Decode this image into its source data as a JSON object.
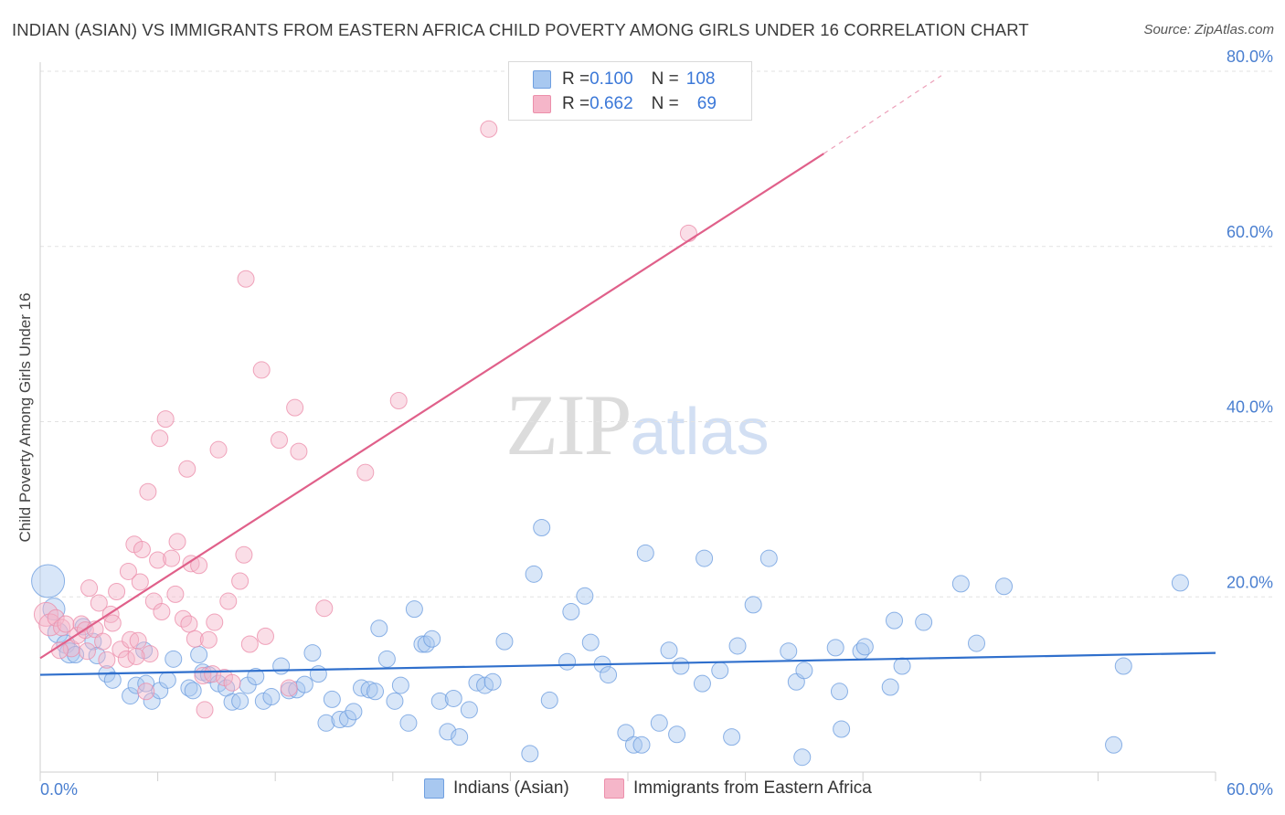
{
  "header": {
    "title": "INDIAN (ASIAN) VS IMMIGRANTS FROM EASTERN AFRICA CHILD POVERTY AMONG GIRLS UNDER 16 CORRELATION CHART",
    "source": "Source: ZipAtlas.com"
  },
  "watermark": {
    "zip": "ZIP",
    "atlas": "atlas"
  },
  "legend": {
    "rows": [
      {
        "r_label": "R = ",
        "r_value": "0.100",
        "n_label": "N = ",
        "n_value": "108",
        "color": "#a8c8f0"
      },
      {
        "r_label": "R = ",
        "r_value": "0.662",
        "n_label": "N = ",
        "n_value": "69",
        "color": "#f5b6c9"
      }
    ]
  },
  "bottom_legend": {
    "series1": "Indians (Asian)",
    "series2": "Immigrants from Eastern Africa"
  },
  "colors": {
    "blue_fill": "#a8c8f0",
    "blue_stroke": "#6f9fe0",
    "blue_line": "#2f6fcc",
    "pink_fill": "#f5b6c9",
    "pink_stroke": "#ec8fab",
    "pink_line": "#e0608a",
    "axis_label": "#4a7fd0",
    "grid": "#e2e2e2"
  },
  "chart_data": {
    "type": "scatter",
    "title": "INDIAN (ASIAN) VS IMMIGRANTS FROM EASTERN AFRICA CHILD POVERTY AMONG GIRLS UNDER 16 CORRELATION CHART",
    "xlabel": "",
    "ylabel": "Child Poverty Among Girls Under 16",
    "xlim": [
      0,
      60
    ],
    "ylim": [
      0,
      80
    ],
    "x_tick_labels": [
      "0.0%",
      "60.0%"
    ],
    "y_ticks": [
      20,
      40,
      60,
      80
    ],
    "y_tick_labels": [
      "20.0%",
      "40.0%",
      "60.0%",
      "80.0%"
    ],
    "grid": true,
    "series": [
      {
        "name": "Indians (Asian)",
        "R": 0.1,
        "N": 108,
        "trend": {
          "x": [
            0,
            60
          ],
          "y": [
            11.1,
            13.6
          ],
          "dashed_from": null
        },
        "points": [
          [
            0.4,
            21.8,
            18
          ],
          [
            0.7,
            18.6,
            12
          ],
          [
            0.9,
            15.9,
            11
          ],
          [
            1.3,
            14.6,
            10
          ],
          [
            2.2,
            16.6,
            9
          ],
          [
            1.5,
            13.6,
            11
          ],
          [
            1.8,
            13.4,
            9
          ],
          [
            2.7,
            14.9,
            9
          ],
          [
            2.9,
            13.3,
            9
          ],
          [
            3.4,
            11.2,
            9
          ],
          [
            3.7,
            10.5,
            9
          ],
          [
            4.6,
            8.7,
            9
          ],
          [
            4.9,
            9.9,
            9
          ],
          [
            5.4,
            10.1,
            9
          ],
          [
            5.3,
            13.9,
            9
          ],
          [
            5.7,
            8.1,
            9
          ],
          [
            6.1,
            9.3,
            9
          ],
          [
            6.5,
            10.5,
            9
          ],
          [
            6.8,
            12.9,
            9
          ],
          [
            7.6,
            9.6,
            9
          ],
          [
            7.8,
            9.3,
            9
          ],
          [
            8.1,
            13.4,
            9
          ],
          [
            8.3,
            11.4,
            9
          ],
          [
            8.6,
            11.1,
            9
          ],
          [
            9.1,
            10.1,
            9
          ],
          [
            9.5,
            9.6,
            9
          ],
          [
            9.8,
            8.0,
            9
          ],
          [
            10.2,
            8.1,
            9
          ],
          [
            10.6,
            9.9,
            9
          ],
          [
            11.0,
            10.9,
            9
          ],
          [
            11.4,
            8.1,
            9
          ],
          [
            11.8,
            8.6,
            9
          ],
          [
            12.3,
            12.1,
            9
          ],
          [
            12.7,
            9.3,
            9
          ],
          [
            13.1,
            9.4,
            9
          ],
          [
            13.5,
            10.0,
            9
          ],
          [
            13.9,
            13.6,
            9
          ],
          [
            14.2,
            11.2,
            9
          ],
          [
            14.6,
            5.6,
            9
          ],
          [
            14.9,
            8.3,
            9
          ],
          [
            15.3,
            6.0,
            9
          ],
          [
            15.7,
            6.1,
            9
          ],
          [
            16.0,
            6.9,
            9
          ],
          [
            16.4,
            9.6,
            9
          ],
          [
            16.8,
            9.4,
            9
          ],
          [
            17.1,
            9.2,
            9
          ],
          [
            17.3,
            16.4,
            9
          ],
          [
            17.7,
            12.9,
            9
          ],
          [
            18.1,
            8.1,
            9
          ],
          [
            18.4,
            9.9,
            9
          ],
          [
            18.8,
            5.6,
            9
          ],
          [
            19.1,
            18.6,
            9
          ],
          [
            19.5,
            14.6,
            9
          ],
          [
            19.7,
            14.6,
            9
          ],
          [
            20.0,
            15.2,
            9
          ],
          [
            20.4,
            8.1,
            9
          ],
          [
            20.8,
            4.6,
            9
          ],
          [
            21.1,
            8.4,
            9
          ],
          [
            21.4,
            4.0,
            9
          ],
          [
            21.9,
            7.1,
            9
          ],
          [
            22.3,
            10.2,
            9
          ],
          [
            22.7,
            9.9,
            9
          ],
          [
            23.1,
            10.3,
            9
          ],
          [
            23.7,
            14.9,
            9
          ],
          [
            25.0,
            2.1,
            9
          ],
          [
            25.2,
            22.6,
            9
          ],
          [
            25.6,
            27.9,
            9
          ],
          [
            26.0,
            8.2,
            9
          ],
          [
            26.9,
            12.6,
            9
          ],
          [
            27.1,
            18.3,
            9
          ],
          [
            27.8,
            20.1,
            9
          ],
          [
            28.1,
            14.8,
            9
          ],
          [
            28.7,
            12.3,
            9
          ],
          [
            29.0,
            11.1,
            9
          ],
          [
            29.9,
            4.5,
            9
          ],
          [
            30.3,
            3.1,
            9
          ],
          [
            30.7,
            3.1,
            9
          ],
          [
            30.9,
            25.0,
            9
          ],
          [
            31.6,
            5.6,
            9
          ],
          [
            32.1,
            13.9,
            9
          ],
          [
            32.5,
            4.3,
            9
          ],
          [
            32.7,
            12.1,
            9
          ],
          [
            33.8,
            10.1,
            9
          ],
          [
            33.9,
            24.4,
            9
          ],
          [
            34.7,
            11.6,
            9
          ],
          [
            35.3,
            4.0,
            9
          ],
          [
            35.6,
            14.4,
            9
          ],
          [
            36.4,
            19.1,
            9
          ],
          [
            37.2,
            24.4,
            9
          ],
          [
            38.2,
            13.8,
            9
          ],
          [
            38.6,
            10.3,
            9
          ],
          [
            38.9,
            1.7,
            9
          ],
          [
            39.0,
            11.6,
            9
          ],
          [
            40.6,
            14.2,
            9
          ],
          [
            40.8,
            9.2,
            9
          ],
          [
            40.9,
            4.9,
            9
          ],
          [
            41.9,
            13.8,
            9
          ],
          [
            42.1,
            14.3,
            9
          ],
          [
            43.4,
            9.7,
            9
          ],
          [
            43.6,
            17.3,
            9
          ],
          [
            44.0,
            12.1,
            9
          ],
          [
            45.1,
            17.1,
            9
          ],
          [
            47.0,
            21.5,
            9
          ],
          [
            47.8,
            14.7,
            9
          ],
          [
            49.2,
            21.2,
            9
          ],
          [
            54.8,
            3.1,
            9
          ],
          [
            55.3,
            12.1,
            9
          ],
          [
            58.2,
            21.6,
            9
          ]
        ]
      },
      {
        "name": "Immigrants from Eastern Africa",
        "R": 0.662,
        "N": 69,
        "trend": {
          "x": [
            0,
            40
          ],
          "y": [
            13.0,
            70.6
          ],
          "dashed_to": [
            46,
            79.5
          ]
        },
        "points": [
          [
            0.3,
            18.0,
            13
          ],
          [
            0.5,
            16.8,
            12
          ],
          [
            0.8,
            17.6,
            9
          ],
          [
            1.1,
            16.5,
            9
          ],
          [
            1.3,
            16.9,
            9
          ],
          [
            1.6,
            14.1,
            9
          ],
          [
            1.9,
            15.6,
            9
          ],
          [
            2.1,
            16.9,
            9
          ],
          [
            2.3,
            16.2,
            9
          ],
          [
            2.5,
            21.0,
            9
          ],
          [
            2.8,
            16.3,
            9
          ],
          [
            3.0,
            19.3,
            9
          ],
          [
            3.2,
            14.9,
            9
          ],
          [
            3.4,
            12.8,
            9
          ],
          [
            3.6,
            18.0,
            9
          ],
          [
            3.7,
            17.0,
            9
          ],
          [
            3.9,
            20.6,
            9
          ],
          [
            4.1,
            14.0,
            9
          ],
          [
            4.4,
            12.9,
            9
          ],
          [
            4.5,
            22.9,
            9
          ],
          [
            4.6,
            15.1,
            9
          ],
          [
            4.8,
            26.0,
            9
          ],
          [
            5.0,
            15.0,
            9
          ],
          [
            5.1,
            21.7,
            9
          ],
          [
            5.2,
            25.4,
            9
          ],
          [
            5.4,
            9.2,
            9
          ],
          [
            5.5,
            32.0,
            9
          ],
          [
            5.6,
            13.5,
            9
          ],
          [
            5.8,
            19.5,
            9
          ],
          [
            6.0,
            24.2,
            9
          ],
          [
            6.1,
            38.1,
            9
          ],
          [
            6.4,
            40.3,
            9
          ],
          [
            6.7,
            24.4,
            9
          ],
          [
            6.9,
            20.3,
            9
          ],
          [
            7.0,
            26.3,
            9
          ],
          [
            7.3,
            17.5,
            9
          ],
          [
            7.5,
            34.6,
            9
          ],
          [
            7.6,
            16.9,
            9
          ],
          [
            7.7,
            23.8,
            9
          ],
          [
            7.9,
            15.2,
            9
          ],
          [
            8.1,
            23.6,
            9
          ],
          [
            8.3,
            11.0,
            9
          ],
          [
            8.4,
            7.1,
            9
          ],
          [
            8.6,
            15.1,
            9
          ],
          [
            8.8,
            11.2,
            9
          ],
          [
            9.1,
            36.8,
            9
          ],
          [
            9.4,
            10.8,
            9
          ],
          [
            9.6,
            19.5,
            9
          ],
          [
            9.8,
            10.2,
            9
          ],
          [
            10.2,
            21.8,
            9
          ],
          [
            10.4,
            24.8,
            9
          ],
          [
            10.5,
            56.3,
            9
          ],
          [
            11.3,
            45.9,
            9
          ],
          [
            11.5,
            15.5,
            9
          ],
          [
            12.2,
            37.9,
            9
          ],
          [
            12.7,
            9.6,
            9
          ],
          [
            13.0,
            41.6,
            9
          ],
          [
            13.2,
            36.6,
            9
          ],
          [
            14.5,
            18.7,
            9
          ],
          [
            16.6,
            34.2,
            9
          ],
          [
            18.3,
            42.4,
            9
          ],
          [
            22.9,
            73.4,
            9
          ],
          [
            33.1,
            61.5,
            9
          ],
          [
            1.0,
            13.9,
            9
          ],
          [
            2.4,
            13.8,
            9
          ],
          [
            4.9,
            13.2,
            9
          ],
          [
            6.2,
            18.3,
            9
          ],
          [
            8.9,
            17.1,
            9
          ],
          [
            10.7,
            14.6,
            9
          ]
        ]
      }
    ]
  }
}
